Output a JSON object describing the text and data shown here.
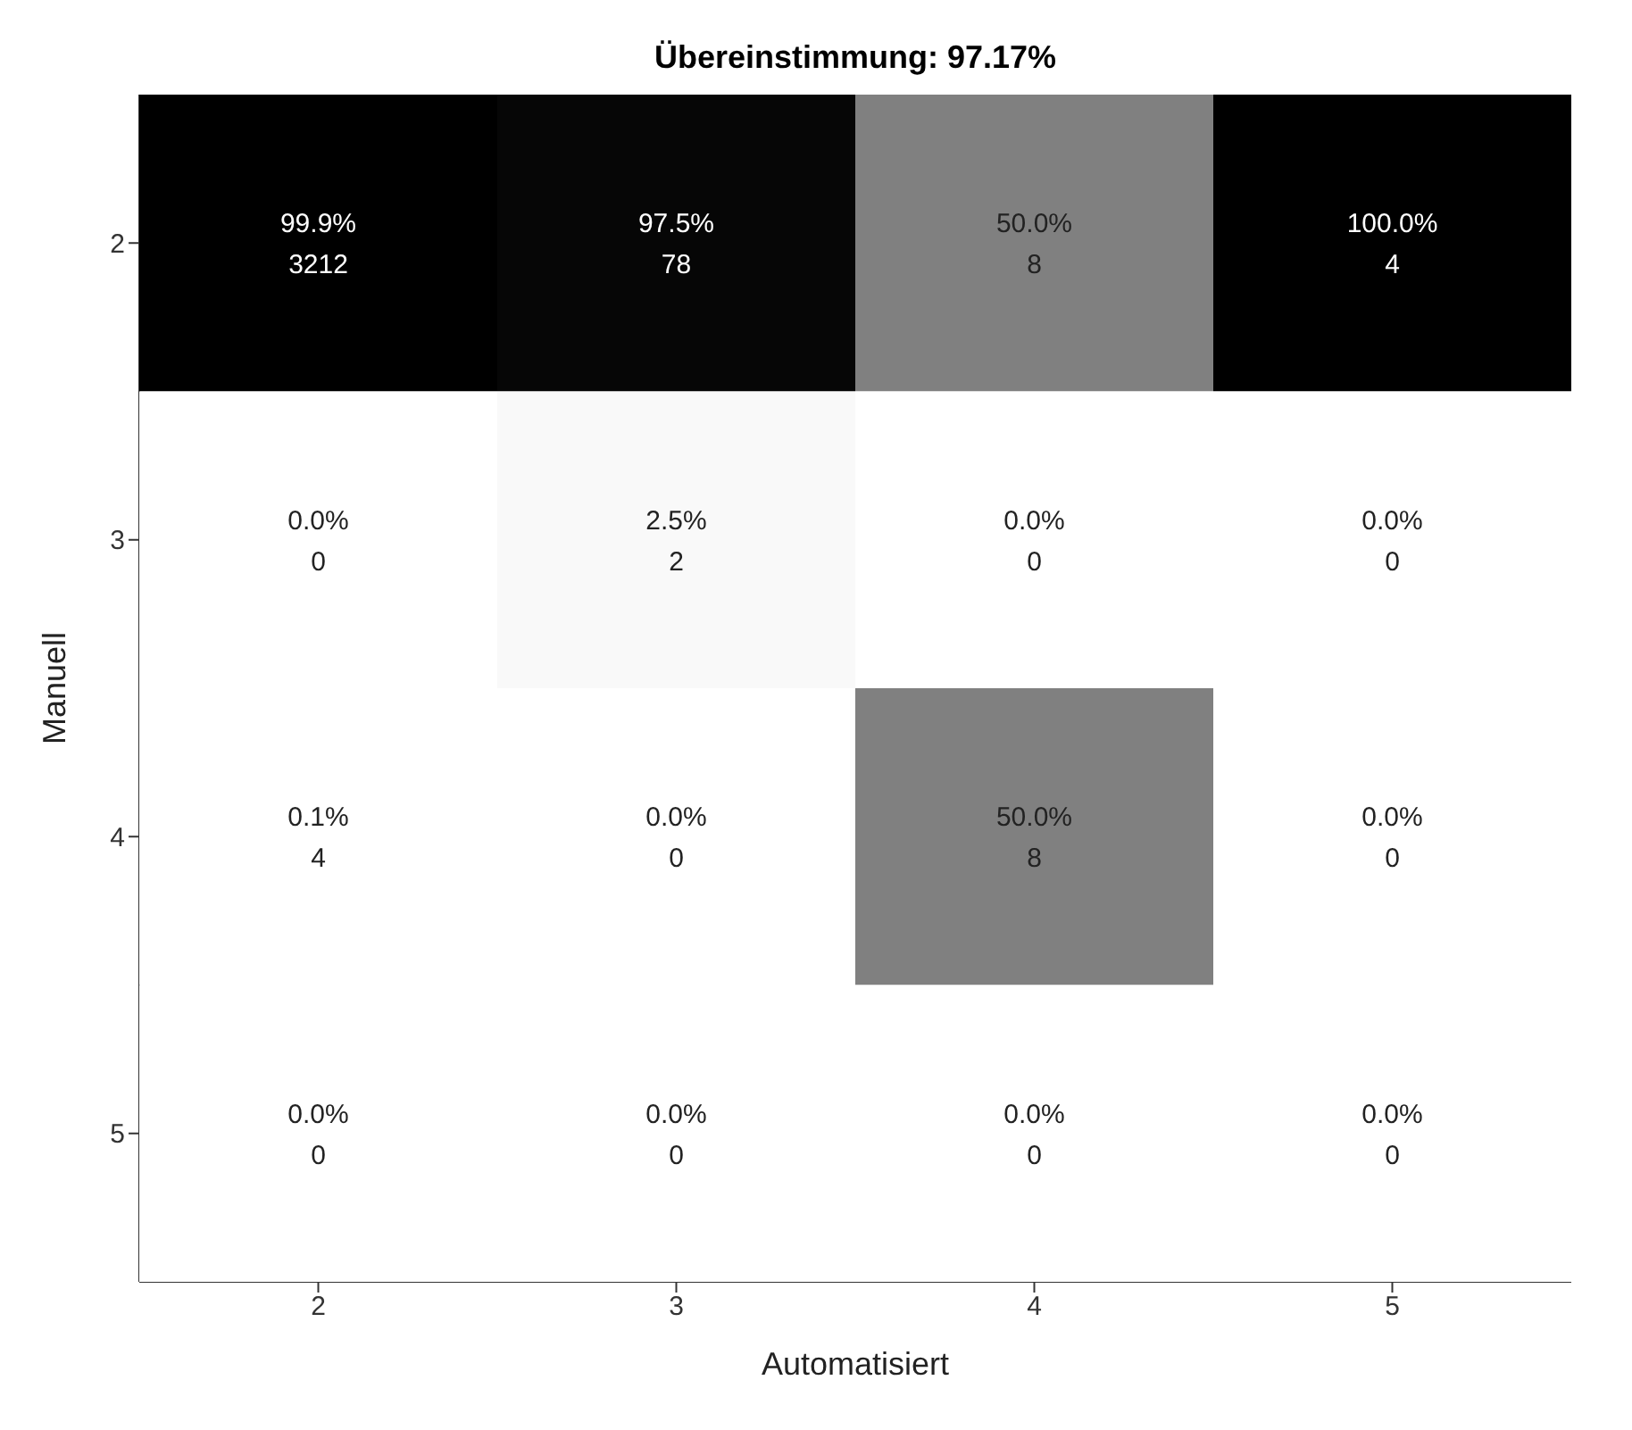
{
  "chart_data": {
    "type": "heatmap",
    "title": "Übereinstimmung: 97.17%",
    "xlabel": "Automatisiert",
    "ylabel": "Manuell",
    "categories": [
      "2",
      "3",
      "4",
      "5"
    ],
    "y_categories": [
      "2",
      "3",
      "4",
      "5"
    ],
    "cells": [
      [
        99.9,
        97.5,
        50.0,
        100.0
      ],
      [
        0.0,
        2.5,
        0.0,
        0.0
      ],
      [
        0.1,
        0.0,
        50.0,
        0.0
      ],
      [
        0.0,
        0.0,
        0.0,
        0.0
      ]
    ],
    "cell_labels": [
      [
        "99.9%",
        "97.5%",
        "50.0%",
        "100.0%"
      ],
      [
        "0.0%",
        "2.5%",
        "0.0%",
        "0.0%"
      ],
      [
        "0.1%",
        "0.0%",
        "50.0%",
        "0.0%"
      ],
      [
        "0.0%",
        "0.0%",
        "0.0%",
        "0.0%"
      ]
    ],
    "annotations": [
      "3212",
      "78",
      "8",
      "4",
      "0",
      "2",
      "0",
      "0",
      "4",
      "0",
      "8",
      "0",
      "0",
      "0",
      "0",
      "0"
    ]
  }
}
